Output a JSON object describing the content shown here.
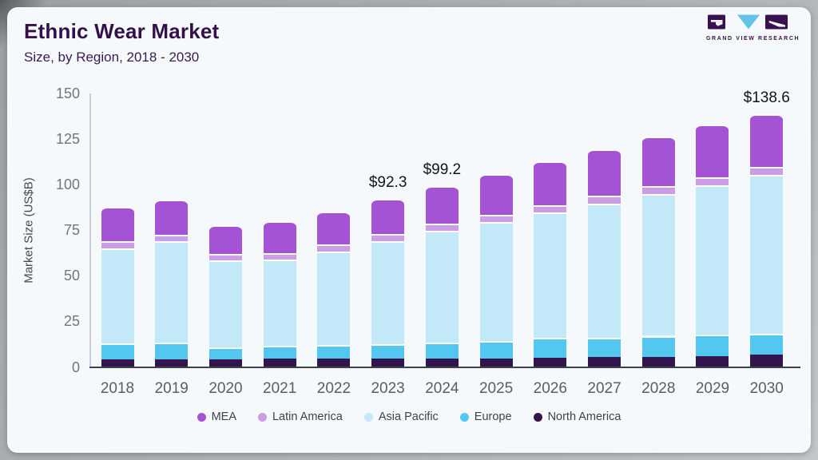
{
  "header": {
    "title": "Ethnic Wear Market",
    "subtitle": "Size, by Region, 2018 - 2030"
  },
  "logo": {
    "text": "GRAND VIEW RESEARCH",
    "brand_purple": "#3a1150",
    "brand_blue": "#62c3e8"
  },
  "chart_data": {
    "type": "bar",
    "stacked": true,
    "title": "Ethnic Wear Market Size, by Region, 2018 - 2030",
    "xlabel": "",
    "ylabel": "Market Size (US$B)",
    "ylim": [
      0,
      150
    ],
    "yticks": [
      0,
      25,
      50,
      75,
      100,
      125,
      150
    ],
    "grid": false,
    "legend_position": "bottom",
    "categories": [
      "2018",
      "2019",
      "2020",
      "2021",
      "2022",
      "2023",
      "2024",
      "2025",
      "2026",
      "2027",
      "2028",
      "2029",
      "2030"
    ],
    "series": [
      {
        "name": "North America",
        "color": "#32154d",
        "values": [
          4.3,
          4.3,
          4.0,
          4.5,
          4.5,
          4.6,
          4.6,
          4.6,
          4.9,
          5.6,
          5.6,
          5.8,
          6.8
        ]
      },
      {
        "name": "Europe",
        "color": "#54c7f0",
        "values": [
          8.6,
          8.9,
          6.7,
          7.0,
          7.5,
          8.1,
          8.8,
          9.7,
          11.0,
          10.6,
          11.5,
          11.9,
          11.3
        ]
      },
      {
        "name": "Asia Pacific",
        "color": "#c3e8f8",
        "values": [
          52.4,
          55.8,
          47.7,
          47.3,
          51.5,
          56.4,
          61.4,
          65.1,
          68.9,
          73.4,
          78.0,
          82.0,
          87.2
        ]
      },
      {
        "name": "Latin America",
        "color": "#cb9de6",
        "values": [
          3.7,
          3.6,
          3.7,
          3.7,
          4.0,
          3.9,
          3.8,
          4.2,
          4.1,
          4.3,
          4.3,
          4.4,
          4.4
        ]
      },
      {
        "name": "MEA",
        "color": "#a553d5",
        "values": [
          18.7,
          19.1,
          15.6,
          17.4,
          18.0,
          19.3,
          20.6,
          22.5,
          24.2,
          25.8,
          27.0,
          28.8,
          28.9
        ]
      }
    ],
    "totals": [
      87.7,
      91.7,
      77.7,
      79.9,
      85.5,
      92.3,
      99.2,
      106.1,
      113.1,
      119.7,
      126.4,
      132.9,
      138.6
    ],
    "legend_order": [
      "MEA",
      "Latin America",
      "Asia Pacific",
      "Europe",
      "North America"
    ],
    "annotations": [
      {
        "category": "2023",
        "text": "$92.3"
      },
      {
        "category": "2024",
        "text": "$99.2"
      },
      {
        "category": "2030",
        "text": "$138.6"
      }
    ]
  }
}
